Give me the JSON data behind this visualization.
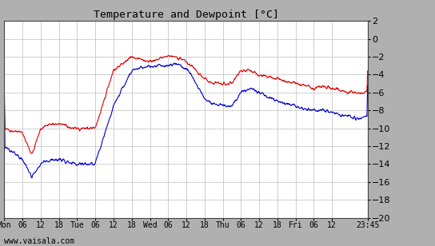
{
  "title": "Temperature and Dewpoint [°C]",
  "ylim": [
    -20,
    2
  ],
  "outer_bg": "#b0b0b0",
  "plot_bg_color": "#ffffff",
  "grid_color": "#c8c8c8",
  "temp_color": "#dd0000",
  "dewp_color": "#0000cc",
  "footer_text": "www.vaisala.com",
  "x_tick_labels": [
    "Mon",
    "06",
    "12",
    "18",
    "Tue",
    "06",
    "12",
    "18",
    "Wed",
    "06",
    "12",
    "18",
    "Thu",
    "06",
    "12",
    "18",
    "Fri",
    "06",
    "12",
    "23:45"
  ],
  "x_tick_positions": [
    0,
    6,
    12,
    18,
    24,
    30,
    36,
    42,
    48,
    54,
    60,
    66,
    72,
    78,
    84,
    90,
    96,
    102,
    108,
    119.75
  ],
  "xlim": [
    0,
    119.75
  ]
}
